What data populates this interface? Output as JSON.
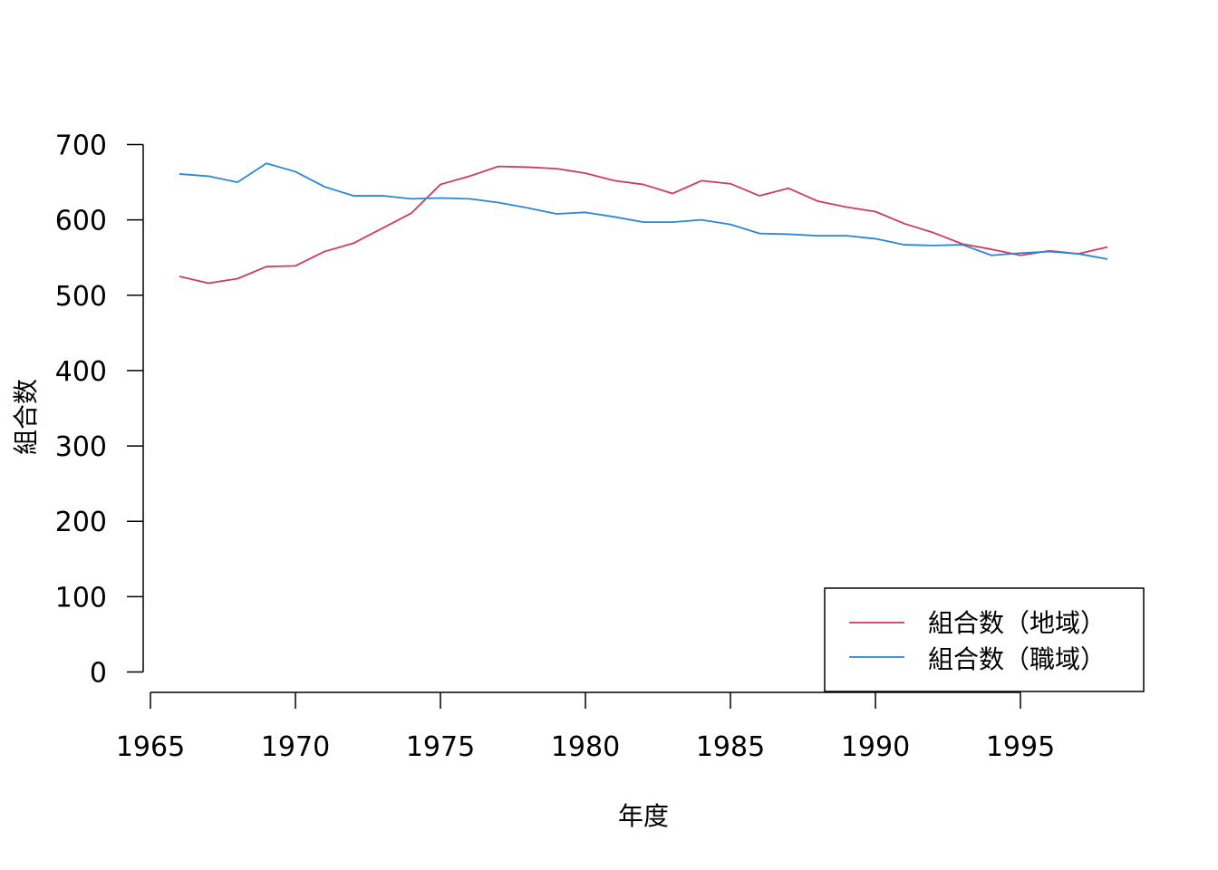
{
  "chart_data": {
    "type": "line",
    "title": "",
    "xlabel": "年度",
    "ylabel": "組合数",
    "xlim": [
      1965,
      1999
    ],
    "ylim": [
      0,
      700
    ],
    "xticks": [
      1965,
      1970,
      1975,
      1980,
      1985,
      1990,
      1995
    ],
    "yticks": [
      0,
      100,
      200,
      300,
      400,
      500,
      600,
      700
    ],
    "grid": false,
    "legend_position": "bottom-right",
    "x": [
      1966,
      1967,
      1968,
      1969,
      1970,
      1971,
      1972,
      1973,
      1974,
      1975,
      1976,
      1977,
      1978,
      1979,
      1980,
      1981,
      1982,
      1983,
      1984,
      1985,
      1986,
      1987,
      1988,
      1989,
      1990,
      1991,
      1992,
      1993,
      1994,
      1995,
      1996,
      1997,
      1998
    ],
    "series": [
      {
        "name": "組合数（地域）",
        "color": "#d03a5c",
        "values": [
          525,
          516,
          522,
          538,
          539,
          558,
          569,
          589,
          609,
          647,
          658,
          671,
          670,
          668,
          662,
          652,
          647,
          635,
          652,
          648,
          632,
          642,
          625,
          617,
          611,
          595,
          583,
          568,
          561,
          553,
          559,
          555,
          564
        ]
      },
      {
        "name": "組合数（職域）",
        "color": "#2a86d6",
        "values": [
          661,
          658,
          650,
          675,
          664,
          644,
          632,
          632,
          628,
          629,
          628,
          623,
          616,
          608,
          610,
          604,
          597,
          597,
          600,
          594,
          582,
          581,
          579,
          579,
          575,
          567,
          566,
          567,
          553,
          556,
          558,
          555,
          548
        ]
      }
    ]
  }
}
